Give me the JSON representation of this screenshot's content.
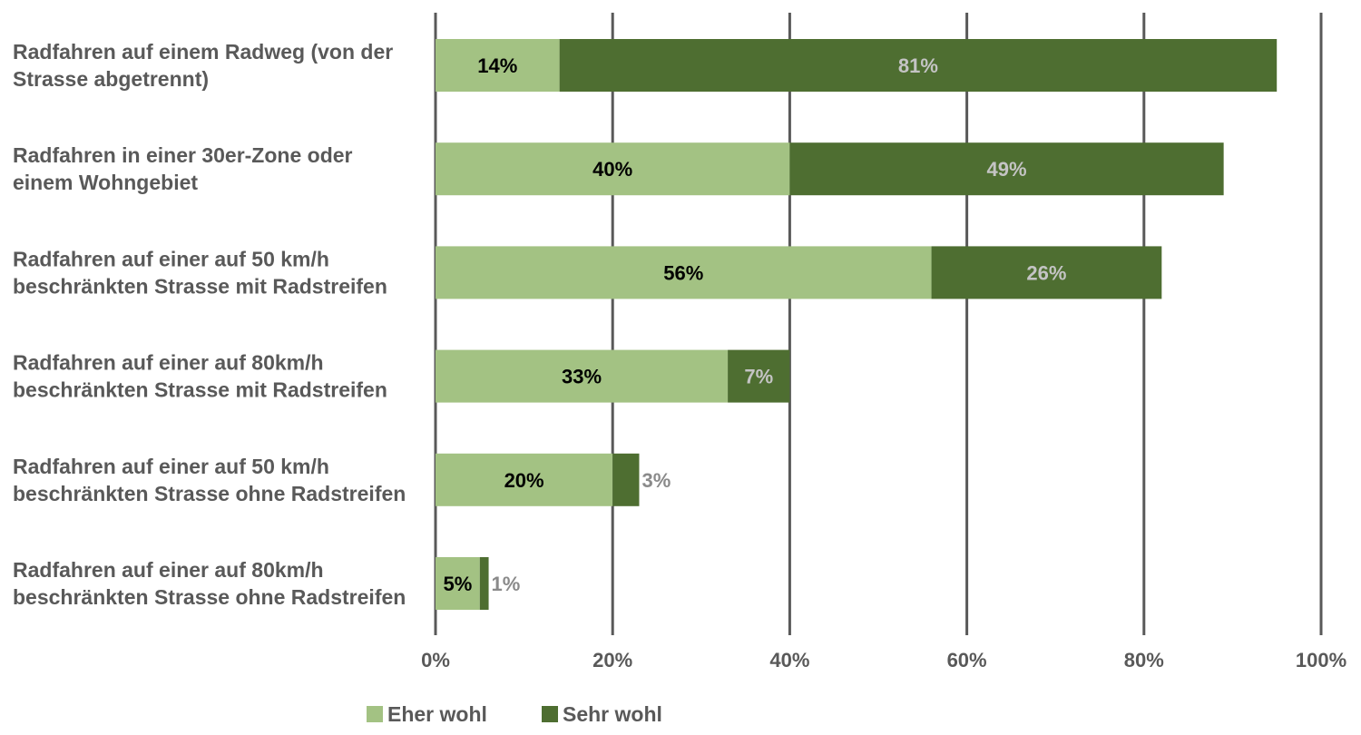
{
  "chart_data": {
    "type": "bar",
    "orientation": "horizontal",
    "stacked": true,
    "categories": [
      [
        "Radfahren auf einem Radweg (von der",
        "Strasse abgetrennt)"
      ],
      [
        "Radfahren in einer 30er-Zone oder",
        "einem Wohngebiet"
      ],
      [
        "Radfahren auf einer auf 50 km/h",
        "beschränkten Strasse mit Radstreifen"
      ],
      [
        "Radfahren auf einer auf 80km/h",
        "beschränkten Strasse mit Radstreifen"
      ],
      [
        "Radfahren auf einer auf 50 km/h",
        "beschränkten Strasse ohne Radstreifen"
      ],
      [
        "Radfahren auf einer auf 80km/h",
        "beschränkten Strasse ohne Radstreifen"
      ]
    ],
    "series": [
      {
        "name": "Eher wohl",
        "color": "#a3c283",
        "label_color": "#000000",
        "values": [
          14,
          40,
          56,
          33,
          20,
          5
        ],
        "labels": [
          "14%",
          "40%",
          "56%",
          "33%",
          "20%",
          "5%"
        ]
      },
      {
        "name": "Sehr wohl",
        "color": "#4e6e31",
        "label_color": "#c4c4c4",
        "outside_label_color": "#8a8a8a",
        "values": [
          81,
          49,
          26,
          7,
          3,
          1
        ],
        "labels": [
          "81%",
          "49%",
          "26%",
          "7%",
          "3%",
          "1%"
        ]
      }
    ],
    "xlim": [
      0,
      100
    ],
    "xticks": [
      0,
      20,
      40,
      60,
      80,
      100
    ],
    "xtick_labels": [
      "0%",
      "20%",
      "40%",
      "60%",
      "80%",
      "100%"
    ],
    "grid": true,
    "grid_color": "#595959",
    "legend_position": "bottom",
    "title": "",
    "xlabel": "",
    "ylabel": ""
  }
}
